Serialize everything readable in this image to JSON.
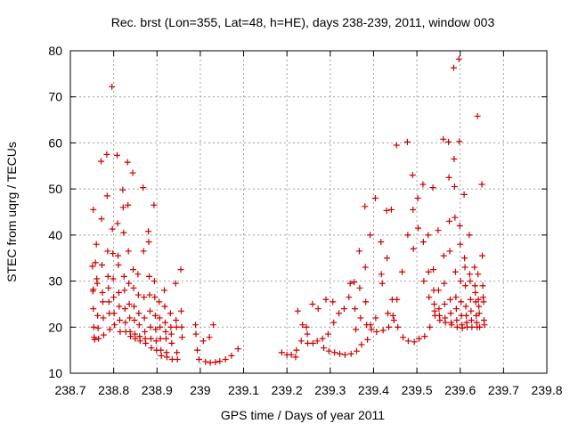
{
  "chart_data": {
    "type": "scatter",
    "title": "Rec. brst (Lon=355, Lat=48, h=HE), days 238-239, 2011, window 003",
    "xlabel": "GPS time / Days of year 2011",
    "ylabel": "STEC from uqrg / TECUs",
    "xlim": [
      238.7,
      239.8
    ],
    "ylim": [
      10,
      80
    ],
    "x_ticks": [
      238.7,
      238.8,
      238.9,
      239.0,
      239.1,
      239.2,
      239.3,
      239.4,
      239.5,
      239.6,
      239.7,
      239.8
    ],
    "x_tick_labels": [
      "238.7",
      "238.8",
      "238.9",
      "239",
      "239.1",
      "239.2",
      "239.3",
      "239.4",
      "239.5",
      "239.6",
      "239.7",
      "239.8"
    ],
    "y_ticks": [
      10,
      20,
      30,
      40,
      50,
      60,
      70,
      80
    ],
    "y_tick_labels": [
      "10",
      "20",
      "30",
      "40",
      "50",
      "60",
      "70",
      "80"
    ],
    "grid": true,
    "marker": "+",
    "marker_color": "#cc0000",
    "points": [
      [
        238.753,
        45.5
      ],
      [
        238.751,
        33.2
      ],
      [
        238.752,
        27.8
      ],
      [
        238.753,
        24.0
      ],
      [
        238.754,
        20.0
      ],
      [
        238.755,
        17.8
      ],
      [
        238.753,
        28.2
      ],
      [
        238.756,
        17.3
      ],
      [
        238.758,
        34.0
      ],
      [
        238.76,
        38.0
      ],
      [
        238.761,
        30.5
      ],
      [
        238.762,
        29.5
      ],
      [
        238.763,
        22.5
      ],
      [
        238.764,
        19.8
      ],
      [
        238.765,
        17.5
      ],
      [
        238.771,
        56.0
      ],
      [
        238.772,
        43.5
      ],
      [
        238.773,
        33.5
      ],
      [
        238.774,
        27.5
      ],
      [
        238.775,
        25.5
      ],
      [
        238.776,
        22.0
      ],
      [
        238.777,
        18.3
      ],
      [
        238.784,
        57.5
      ],
      [
        238.785,
        48.5
      ],
      [
        238.786,
        36.5
      ],
      [
        238.787,
        31.0
      ],
      [
        238.788,
        28.5
      ],
      [
        238.789,
        25.5
      ],
      [
        238.79,
        23.0
      ],
      [
        238.791,
        19.5
      ],
      [
        238.796,
        72.2
      ],
      [
        238.797,
        41.3
      ],
      [
        238.798,
        36.0
      ],
      [
        238.799,
        30.5
      ],
      [
        238.8,
        26.5
      ],
      [
        238.801,
        23.0
      ],
      [
        238.802,
        20.5
      ],
      [
        238.808,
        57.3
      ],
      [
        238.809,
        42.5
      ],
      [
        238.81,
        35.5
      ],
      [
        238.811,
        33.5
      ],
      [
        238.812,
        27.5
      ],
      [
        238.813,
        24.5
      ],
      [
        238.814,
        21.5
      ],
      [
        238.815,
        19.0
      ],
      [
        238.821,
        49.8
      ],
      [
        238.822,
        46.0
      ],
      [
        238.823,
        40.5
      ],
      [
        238.824,
        31.0
      ],
      [
        238.825,
        28.0
      ],
      [
        238.826,
        24.0
      ],
      [
        238.827,
        21.0
      ],
      [
        238.828,
        19.0
      ],
      [
        238.832,
        55.8
      ],
      [
        238.833,
        46.5
      ],
      [
        238.834,
        36.5
      ],
      [
        238.835,
        29.5
      ],
      [
        238.836,
        25.0
      ],
      [
        238.837,
        22.0
      ],
      [
        238.838,
        19.0
      ],
      [
        238.839,
        18.0
      ],
      [
        238.844,
        53.5
      ],
      [
        238.845,
        32.5
      ],
      [
        238.846,
        28.5
      ],
      [
        238.847,
        24.5
      ],
      [
        238.848,
        21.5
      ],
      [
        238.849,
        18.5
      ],
      [
        238.85,
        17.5
      ],
      [
        238.856,
        31.5
      ],
      [
        238.857,
        27.0
      ],
      [
        238.858,
        23.0
      ],
      [
        238.859,
        20.5
      ],
      [
        238.86,
        18.0
      ],
      [
        238.861,
        17.0
      ],
      [
        238.868,
        50.3
      ],
      [
        238.869,
        36.5
      ],
      [
        238.87,
        26.5
      ],
      [
        238.871,
        22.0
      ],
      [
        238.872,
        19.0
      ],
      [
        238.873,
        17.5
      ],
      [
        238.874,
        16.5
      ],
      [
        238.88,
        40.8
      ],
      [
        238.881,
        38.5
      ],
      [
        238.882,
        31.0
      ],
      [
        238.883,
        27.0
      ],
      [
        238.884,
        23.5
      ],
      [
        238.885,
        20.0
      ],
      [
        238.886,
        17.5
      ],
      [
        238.887,
        15.5
      ],
      [
        238.893,
        46.5
      ],
      [
        238.894,
        30.0
      ],
      [
        238.895,
        26.5
      ],
      [
        238.896,
        22.5
      ],
      [
        238.897,
        19.5
      ],
      [
        238.898,
        17.0
      ],
      [
        238.899,
        15.0
      ],
      [
        238.905,
        25.5
      ],
      [
        238.906,
        22.0
      ],
      [
        238.907,
        20.0
      ],
      [
        238.908,
        17.5
      ],
      [
        238.909,
        15.0
      ],
      [
        238.91,
        13.8
      ],
      [
        238.917,
        28.0
      ],
      [
        238.918,
        24.5
      ],
      [
        238.919,
        21.0
      ],
      [
        238.92,
        19.0
      ],
      [
        238.921,
        17.5
      ],
      [
        238.922,
        14.5
      ],
      [
        238.923,
        13.5
      ],
      [
        238.931,
        23.0
      ],
      [
        238.932,
        20.0
      ],
      [
        238.933,
        18.5
      ],
      [
        238.934,
        16.5
      ],
      [
        238.935,
        13.0
      ],
      [
        238.943,
        29.5
      ],
      [
        238.944,
        21.5
      ],
      [
        238.945,
        20.0
      ],
      [
        238.946,
        14.5
      ],
      [
        238.947,
        13.0
      ],
      [
        238.955,
        32.5
      ],
      [
        238.956,
        23.5
      ],
      [
        238.957,
        20.0
      ],
      [
        238.958,
        17.8
      ],
      [
        238.989,
        20.5
      ],
      [
        238.99,
        18.5
      ],
      [
        238.993,
        15.0
      ],
      [
        238.997,
        13.0
      ],
      [
        239.007,
        17.0
      ],
      [
        239.012,
        12.5
      ],
      [
        239.021,
        17.8
      ],
      [
        239.023,
        12.3
      ],
      [
        239.03,
        20.5
      ],
      [
        239.035,
        12.4
      ],
      [
        239.045,
        12.6
      ],
      [
        239.058,
        13.0
      ],
      [
        239.072,
        13.8
      ],
      [
        239.087,
        15.3
      ],
      [
        239.188,
        14.5
      ],
      [
        239.2,
        14.0
      ],
      [
        239.21,
        14.0
      ],
      [
        239.22,
        13.5
      ],
      [
        239.222,
        15.0
      ],
      [
        239.225,
        23.5
      ],
      [
        239.233,
        17.0
      ],
      [
        239.236,
        20.5
      ],
      [
        239.245,
        20.0
      ],
      [
        239.247,
        18.5
      ],
      [
        239.248,
        16.5
      ],
      [
        239.259,
        25.0
      ],
      [
        239.26,
        16.5
      ],
      [
        239.27,
        17.0
      ],
      [
        239.272,
        24.0
      ],
      [
        239.282,
        17.5
      ],
      [
        239.285,
        15.5
      ],
      [
        239.29,
        26.0
      ],
      [
        239.295,
        18.5
      ],
      [
        239.297,
        14.8
      ],
      [
        239.306,
        25.5
      ],
      [
        239.308,
        21.0
      ],
      [
        239.31,
        14.5
      ],
      [
        239.32,
        23.0
      ],
      [
        239.322,
        14.2
      ],
      [
        239.332,
        24.0
      ],
      [
        239.334,
        14.0
      ],
      [
        239.343,
        26.5
      ],
      [
        239.346,
        29.5
      ],
      [
        239.348,
        14.2
      ],
      [
        239.355,
        29.8
      ],
      [
        239.357,
        24.0
      ],
      [
        239.359,
        19.5
      ],
      [
        239.361,
        14.8
      ],
      [
        239.367,
        36.5
      ],
      [
        239.368,
        28.5
      ],
      [
        239.37,
        22.0
      ],
      [
        239.372,
        16.2
      ],
      [
        239.38,
        46.2
      ],
      [
        239.381,
        33.0
      ],
      [
        239.382,
        25.5
      ],
      [
        239.384,
        20.5
      ],
      [
        239.386,
        17.3
      ],
      [
        239.392,
        40.0
      ],
      [
        239.393,
        20.5
      ],
      [
        239.395,
        19.5
      ],
      [
        239.404,
        48.0
      ],
      [
        239.405,
        22.0
      ],
      [
        239.407,
        19.0
      ],
      [
        239.417,
        38.5
      ],
      [
        239.418,
        31.5
      ],
      [
        239.42,
        29.5
      ],
      [
        239.422,
        19.3
      ],
      [
        239.43,
        45.3
      ],
      [
        239.431,
        35.0
      ],
      [
        239.433,
        23.0
      ],
      [
        239.435,
        20.0
      ],
      [
        239.441,
        45.5
      ],
      [
        239.443,
        26.0
      ],
      [
        239.445,
        22.5
      ],
      [
        239.447,
        21.5
      ],
      [
        239.453,
        59.5
      ],
      [
        239.454,
        26.0
      ],
      [
        239.456,
        20.0
      ],
      [
        239.466,
        32.0
      ],
      [
        239.468,
        17.8
      ],
      [
        239.478,
        60.2
      ],
      [
        239.479,
        40.0
      ],
      [
        239.48,
        17.0
      ],
      [
        239.49,
        53.0
      ],
      [
        239.491,
        45.5
      ],
      [
        239.492,
        37.0
      ],
      [
        239.494,
        16.8
      ],
      [
        239.502,
        48.0
      ],
      [
        239.503,
        41.5
      ],
      [
        239.505,
        17.5
      ],
      [
        239.514,
        51.0
      ],
      [
        239.515,
        38.5
      ],
      [
        239.516,
        30.0
      ],
      [
        239.518,
        18.0
      ],
      [
        239.526,
        40.0
      ],
      [
        239.527,
        32.0
      ],
      [
        239.528,
        26.5
      ],
      [
        239.53,
        20.0
      ],
      [
        239.537,
        50.3
      ],
      [
        239.538,
        32.5
      ],
      [
        239.539,
        28.0
      ],
      [
        239.54,
        25.0
      ],
      [
        239.541,
        23.5
      ],
      [
        239.542,
        22.5
      ],
      [
        239.549,
        41.0
      ],
      [
        239.55,
        28.0
      ],
      [
        239.551,
        24.0
      ],
      [
        239.552,
        22.5
      ],
      [
        239.553,
        21.5
      ],
      [
        239.561,
        60.8
      ],
      [
        239.562,
        35.5
      ],
      [
        239.563,
        29.5
      ],
      [
        239.564,
        25.0
      ],
      [
        239.565,
        22.0
      ],
      [
        239.566,
        21.0
      ],
      [
        239.573,
        60.2
      ],
      [
        239.574,
        52.5
      ],
      [
        239.575,
        43.0
      ],
      [
        239.576,
        36.5
      ],
      [
        239.577,
        26.0
      ],
      [
        239.578,
        23.0
      ],
      [
        239.579,
        21.0
      ],
      [
        239.58,
        20.5
      ],
      [
        239.585,
        76.3
      ],
      [
        239.586,
        56.5
      ],
      [
        239.587,
        50.5
      ],
      [
        239.588,
        43.8
      ],
      [
        239.589,
        32.0
      ],
      [
        239.59,
        26.5
      ],
      [
        239.591,
        24.0
      ],
      [
        239.592,
        21.5
      ],
      [
        239.593,
        20.0
      ],
      [
        239.597,
        78.2
      ],
      [
        239.598,
        60.3
      ],
      [
        239.599,
        42.0
      ],
      [
        239.6,
        38.0
      ],
      [
        239.601,
        30.0
      ],
      [
        239.602,
        25.5
      ],
      [
        239.603,
        22.5
      ],
      [
        239.604,
        20.5
      ],
      [
        239.605,
        19.8
      ],
      [
        239.609,
        48.8
      ],
      [
        239.61,
        35.0
      ],
      [
        239.611,
        33.0
      ],
      [
        239.612,
        29.0
      ],
      [
        239.613,
        24.5
      ],
      [
        239.614,
        22.5
      ],
      [
        239.615,
        21.0
      ],
      [
        239.616,
        20.0
      ],
      [
        239.621,
        40.0
      ],
      [
        239.622,
        31.5
      ],
      [
        239.623,
        30.0
      ],
      [
        239.624,
        26.0
      ],
      [
        239.625,
        23.5
      ],
      [
        239.626,
        21.5
      ],
      [
        239.627,
        20.0
      ],
      [
        239.633,
        33.0
      ],
      [
        239.634,
        29.0
      ],
      [
        239.635,
        27.5
      ],
      [
        239.636,
        25.5
      ],
      [
        239.637,
        22.5
      ],
      [
        239.638,
        21.0
      ],
      [
        239.639,
        20.0
      ],
      [
        239.64,
        65.8
      ],
      [
        239.641,
        31.5
      ],
      [
        239.642,
        26.0
      ],
      [
        239.643,
        24.5
      ],
      [
        239.644,
        23.0
      ],
      [
        239.645,
        20.0
      ],
      [
        239.65,
        51.0
      ],
      [
        239.651,
        35.5
      ],
      [
        239.652,
        29.0
      ],
      [
        239.653,
        26.5
      ],
      [
        239.654,
        25.5
      ],
      [
        239.655,
        21.5
      ],
      [
        239.656,
        20.5
      ]
    ]
  }
}
